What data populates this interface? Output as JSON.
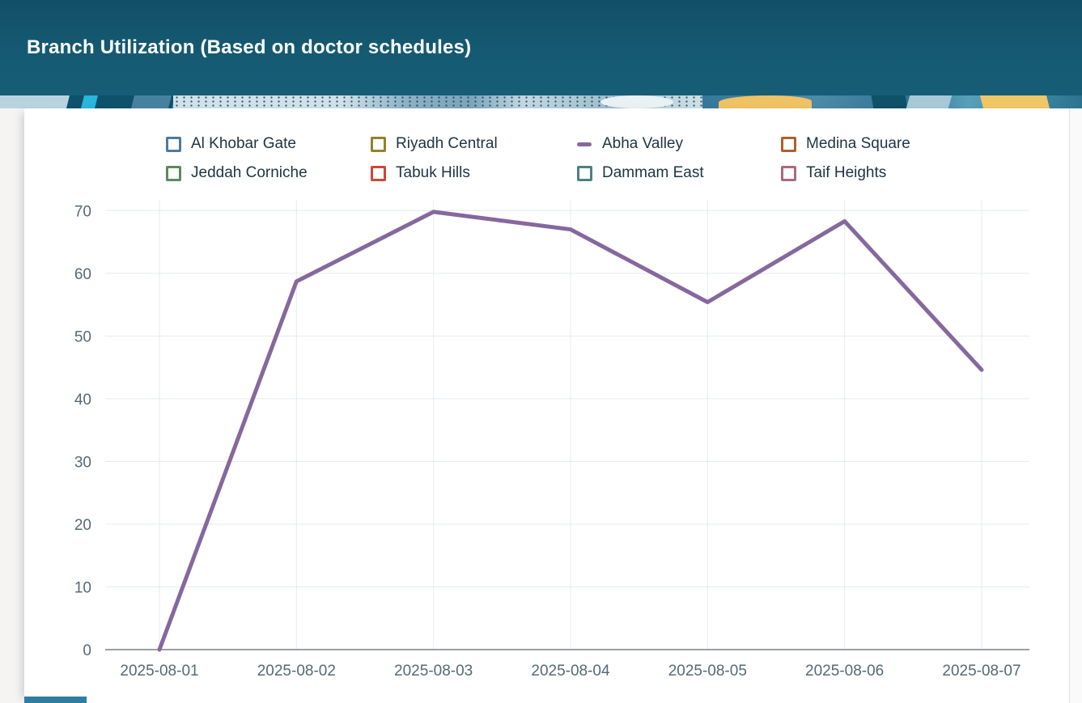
{
  "header": {
    "title": "Branch Utilization (Based on doctor schedules)"
  },
  "colors": {
    "header_background": "#155a72",
    "card_background": "#ffffff",
    "axis_label": "#566975",
    "gridline": "#e4eaee",
    "axis_line": "#9aa0a4",
    "legend_text": "#1e3442"
  },
  "chart_data": {
    "type": "line",
    "title": "Branch Utilization (Based on doctor schedules)",
    "x": [
      "2025-08-01",
      "2025-08-02",
      "2025-08-03",
      "2025-08-04",
      "2025-08-05",
      "2025-08-06",
      "2025-08-07"
    ],
    "series": [
      {
        "name": "Al Khobar Gate",
        "color": "#4e7a9e",
        "marker": "box",
        "visible": false
      },
      {
        "name": "Riyadh Central",
        "color": "#94812c",
        "marker": "box",
        "visible": false
      },
      {
        "name": "Abha Valley",
        "color": "#85689d",
        "marker": "line",
        "visible": true,
        "values": [
          0,
          58.7,
          69.8,
          67.0,
          55.4,
          68.3,
          44.6
        ]
      },
      {
        "name": "Medina Square",
        "color": "#ad5f2e",
        "marker": "box",
        "visible": false
      },
      {
        "name": "Jeddah Corniche",
        "color": "#5b8a5d",
        "marker": "box",
        "visible": false
      },
      {
        "name": "Tabuk Hills",
        "color": "#cf4638",
        "marker": "box",
        "visible": false
      },
      {
        "name": "Dammam East",
        "color": "#4f807f",
        "marker": "box",
        "visible": false
      },
      {
        "name": "Taif Heights",
        "color": "#a86b7d",
        "marker": "box",
        "visible": false
      }
    ],
    "xlabel": "",
    "ylabel": "",
    "ylim": [
      0,
      70
    ],
    "yticks": [
      0,
      10,
      20,
      30,
      40,
      50,
      60,
      70
    ],
    "grid": true,
    "legend_position": "top",
    "legend_rows": 2,
    "legend_columns": 4
  }
}
